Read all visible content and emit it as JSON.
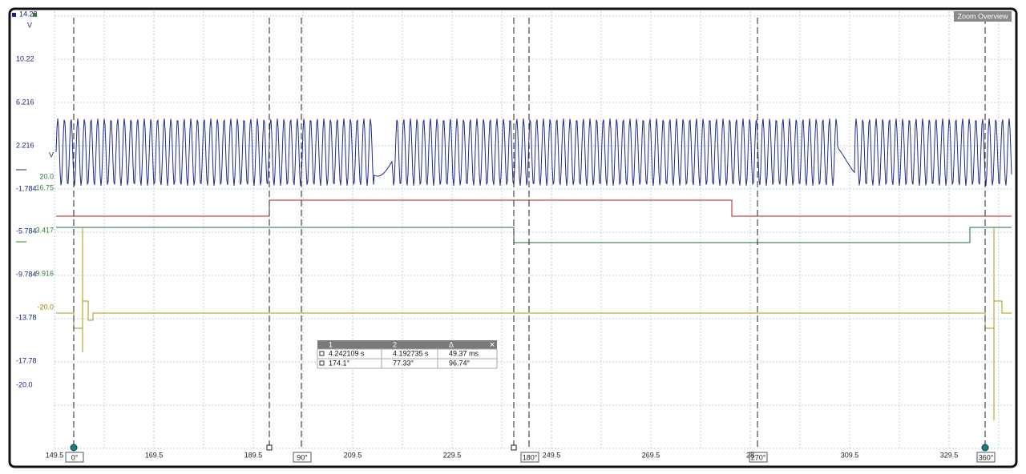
{
  "zoom_button": "Zoom Overview",
  "left_axis": [
    "14.22",
    "V",
    "10.22",
    "6.216",
    "2.216",
    "-1.784",
    "-5.784",
    "-9.784",
    "-13.78",
    "-17.78",
    "-20.0"
  ],
  "channel_axis": [
    "V",
    "20.0",
    "16.75",
    "3.417",
    "-9.916",
    "-20.0"
  ],
  "x_axis": [
    "149.5",
    "169.5",
    "189.5",
    "209.5",
    "229.5",
    "249.5",
    "269.5",
    "28",
    "309.5",
    "329.5"
  ],
  "cursors": [
    "0°",
    "90°",
    "180°",
    "270°",
    "360°"
  ],
  "measurement_table": {
    "columns": [
      "1",
      "2",
      "Δ"
    ],
    "rows": [
      [
        "4.242109 s",
        "4.192735 s",
        "49.37 ms"
      ],
      [
        "174.1°",
        "77.33°",
        "96.74°"
      ]
    ]
  }
}
